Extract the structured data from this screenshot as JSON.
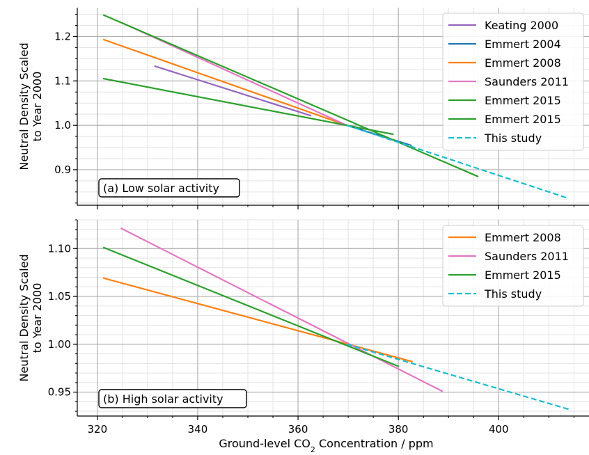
{
  "chart_data": [
    {
      "type": "line",
      "panel_label": "(a) Low solar activity",
      "ylabel": [
        "Neutral Density Scaled",
        "to Year 2000"
      ],
      "xlim": [
        316,
        418
      ],
      "ylim": [
        0.82,
        1.265
      ],
      "yticks": [
        0.9,
        1.0,
        1.1,
        1.2
      ],
      "ytick_labels": [
        "0.9",
        "1.0",
        "1.1",
        "1.2"
      ],
      "grid": true,
      "legend_position": "top-right",
      "series": [
        {
          "name": "Keating 2000",
          "color": "#9467bd",
          "style": "solid",
          "x": [
            331.5,
            362.5
          ],
          "y": [
            1.133,
            1.022
          ]
        },
        {
          "name": "Emmert 2004",
          "color": "#1f77b4",
          "style": "solid",
          "x": [
            369.7,
            382.5
          ],
          "y": [
            1.0,
            0.955
          ]
        },
        {
          "name": "Emmert 2008",
          "color": "#ff7f0e",
          "style": "solid",
          "x": [
            321.3,
            369.7
          ],
          "y": [
            1.193,
            1.0
          ]
        },
        {
          "name": "Saunders 2011",
          "color": "#e377c2",
          "style": "solid",
          "x": [
            324.7,
            369.7
          ],
          "y": [
            1.232,
            1.0
          ]
        },
        {
          "name": "Emmert 2015",
          "color": "#2ca02c",
          "style": "solid",
          "x": [
            321.3,
            395.8
          ],
          "y": [
            1.248,
            0.885
          ]
        },
        {
          "name": "Emmert 2015",
          "color": "#2ca02c",
          "style": "solid",
          "x": [
            321.3,
            378.9
          ],
          "y": [
            1.105,
            0.98
          ]
        },
        {
          "name": "This study",
          "color": "#17becf",
          "style": "dashed",
          "x": [
            369.7,
            414.0
          ],
          "y": [
            1.0,
            0.835
          ]
        }
      ]
    },
    {
      "type": "line",
      "panel_label": "(b) High solar activity",
      "ylabel": [
        "Neutral Density Scaled",
        "to Year 2000"
      ],
      "xlabel": "Ground-level CO",
      "xlabel_sub": "2",
      "xlabel_suffix": " Concentration / ppm",
      "xlim": [
        316,
        418
      ],
      "ylim": [
        0.925,
        1.13
      ],
      "yticks": [
        0.95,
        1.0,
        1.05,
        1.1
      ],
      "ytick_labels": [
        "0.95",
        "1.00",
        "1.05",
        "1.10"
      ],
      "xticks": [
        320,
        340,
        360,
        380,
        400
      ],
      "xtick_labels": [
        "320",
        "340",
        "360",
        "380",
        "400"
      ],
      "grid": true,
      "legend_position": "top-right",
      "series": [
        {
          "name": "Emmert 2008",
          "color": "#ff7f0e",
          "style": "solid",
          "x": [
            321.3,
            382.7
          ],
          "y": [
            1.069,
            0.982
          ]
        },
        {
          "name": "Saunders 2011",
          "color": "#e377c2",
          "style": "solid",
          "x": [
            324.8,
            388.7
          ],
          "y": [
            1.121,
            0.951
          ]
        },
        {
          "name": "Emmert 2015",
          "color": "#2ca02c",
          "style": "solid",
          "x": [
            321.3,
            380.0
          ],
          "y": [
            1.101,
            0.977
          ]
        },
        {
          "name": "This study",
          "color": "#17becf",
          "style": "dashed",
          "x": [
            369.7,
            414.0
          ],
          "y": [
            1.0,
            0.932
          ]
        }
      ]
    }
  ]
}
